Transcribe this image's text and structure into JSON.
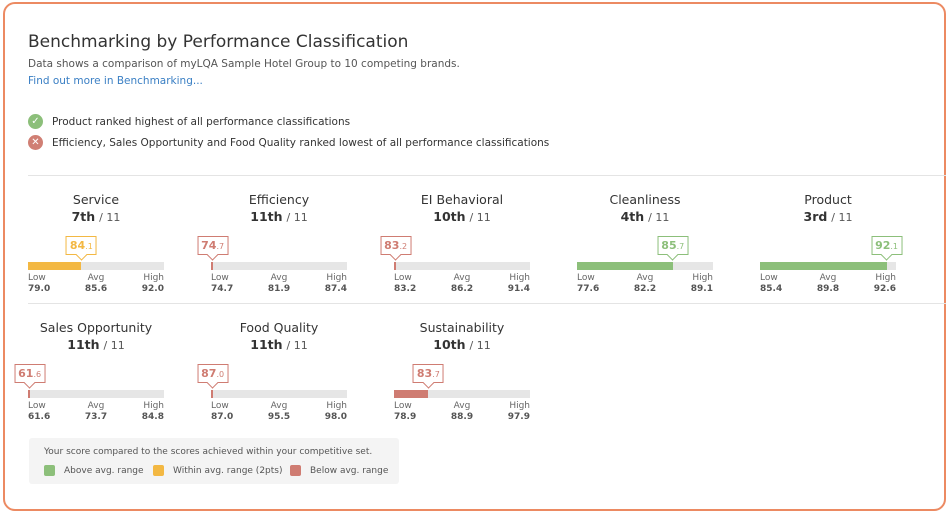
{
  "header": {
    "title": "Benchmarking by Performance Classification",
    "subtitle": "Data shows a comparison of myLQA Sample Hotel Group to 10 competing brands.",
    "link": "Find out more in Benchmarking..."
  },
  "notes": [
    {
      "icon": "check-icon",
      "text": "Product ranked highest of all performance classifications",
      "color": "#8cbf7a"
    },
    {
      "icon": "x-icon",
      "text": "Efficiency, Sales Opportunity and Food Quality ranked lowest of all performance classifications",
      "color": "#d07f74"
    }
  ],
  "labels": {
    "low": "Low",
    "avg": "Avg",
    "high": "High",
    "of": "/ 11"
  },
  "colors": {
    "above": "#8cbf7a",
    "within": "#f3b843",
    "below": "#cf7c72"
  },
  "metrics": [
    {
      "name": "Service",
      "rank": "7th",
      "score_int": "84",
      "score_dec": ".1",
      "score": 84.1,
      "low": "79.0",
      "avg": "85.6",
      "high": "92.0",
      "status": "within"
    },
    {
      "name": "Efficiency",
      "rank": "11th",
      "score_int": "74",
      "score_dec": ".7",
      "score": 74.7,
      "low": "74.7",
      "avg": "81.9",
      "high": "87.4",
      "status": "below"
    },
    {
      "name": "EI Behavioral",
      "rank": "10th",
      "score_int": "83",
      "score_dec": ".2",
      "score": 83.2,
      "low": "83.2",
      "avg": "86.2",
      "high": "91.4",
      "status": "below"
    },
    {
      "name": "Cleanliness",
      "rank": "4th",
      "score_int": "85",
      "score_dec": ".7",
      "score": 85.7,
      "low": "77.6",
      "avg": "82.2",
      "high": "89.1",
      "status": "above"
    },
    {
      "name": "Product",
      "rank": "3rd",
      "score_int": "92",
      "score_dec": ".1",
      "score": 92.1,
      "low": "85.4",
      "avg": "89.8",
      "high": "92.6",
      "status": "above"
    },
    {
      "name": "Sales Opportunity",
      "rank": "11th",
      "score_int": "61",
      "score_dec": ".6",
      "score": 61.6,
      "low": "61.6",
      "avg": "73.7",
      "high": "84.8",
      "status": "below"
    },
    {
      "name": "Food Quality",
      "rank": "11th",
      "score_int": "87",
      "score_dec": ".0",
      "score": 87.0,
      "low": "87.0",
      "avg": "95.5",
      "high": "98.0",
      "status": "below"
    },
    {
      "name": "Sustainability",
      "rank": "10th",
      "score_int": "83",
      "score_dec": ".7",
      "score": 83.7,
      "low": "78.9",
      "avg": "88.9",
      "high": "97.9",
      "status": "below"
    }
  ],
  "legend": {
    "title": "Your score compared to the scores achieved within your competitive set.",
    "items": [
      {
        "key": "above",
        "label": "Above avg. range"
      },
      {
        "key": "within",
        "label": "Within avg. range (2pts)"
      },
      {
        "key": "below",
        "label": "Below avg. range"
      }
    ]
  }
}
